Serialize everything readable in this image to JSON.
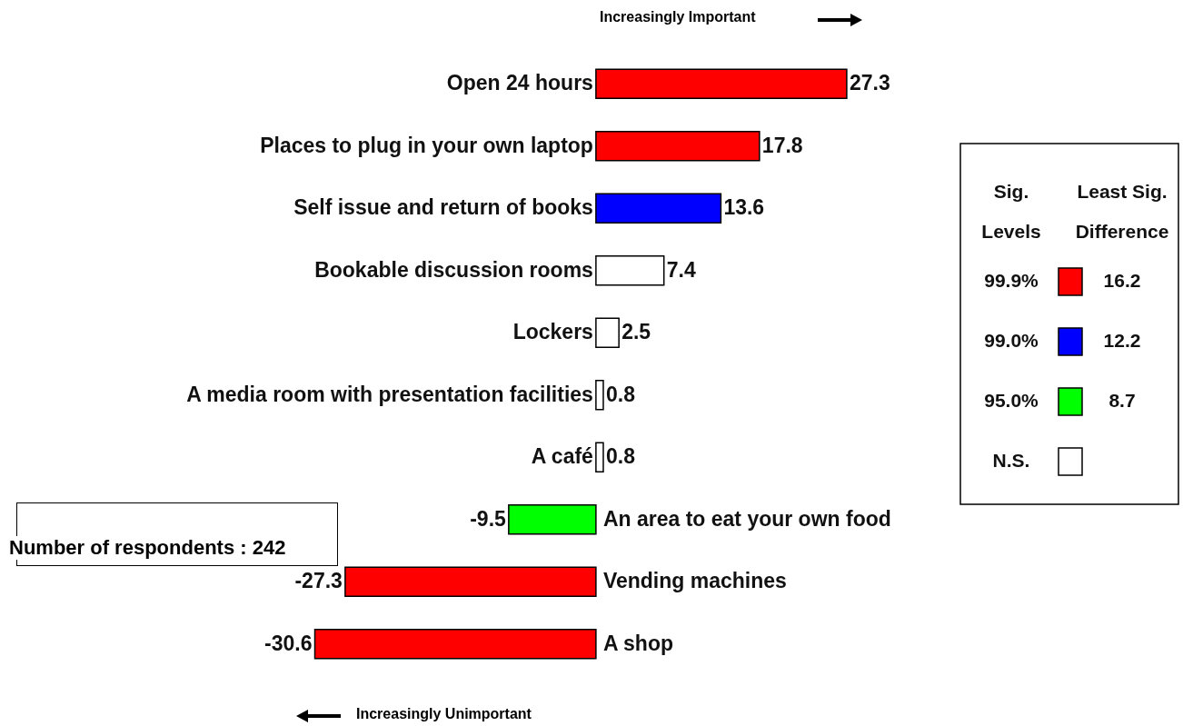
{
  "chart_data": {
    "type": "bar",
    "orientation": "horizontal",
    "categories": [
      "Open 24 hours",
      "Places to plug in your own laptop",
      "Self issue and return of books",
      "Bookable discussion rooms",
      "Lockers",
      "A media room with presentation facilities",
      "A café",
      "An area to eat your own food",
      "Vending machines",
      "A shop"
    ],
    "series": [
      {
        "name": "99.9%",
        "color": "#ff0000",
        "values": [
          27.3,
          17.8,
          null,
          null,
          null,
          null,
          null,
          null,
          -27.3,
          -30.6
        ]
      },
      {
        "name": "99.0%",
        "color": "#0000ff",
        "values": [
          null,
          null,
          13.6,
          null,
          null,
          null,
          null,
          null,
          null,
          null
        ]
      },
      {
        "name": "95.0%",
        "color": "#00ff00",
        "values": [
          null,
          null,
          null,
          null,
          null,
          null,
          null,
          -9.5,
          null,
          null
        ]
      },
      {
        "name": "N.S.",
        "color": "#ffffff",
        "values": [
          null,
          null,
          null,
          7.4,
          2.5,
          0.8,
          0.8,
          null,
          null,
          null
        ]
      }
    ],
    "data_labels": true,
    "legend": "right",
    "legend_title": "Sig. Levels",
    "annotations": [
      "Increasingly Important",
      "Increasingly Unimportant",
      "Number of respondents : 242",
      "Least Sig. Difference",
      "16.2",
      "12.2",
      "8.7"
    ]
  }
}
